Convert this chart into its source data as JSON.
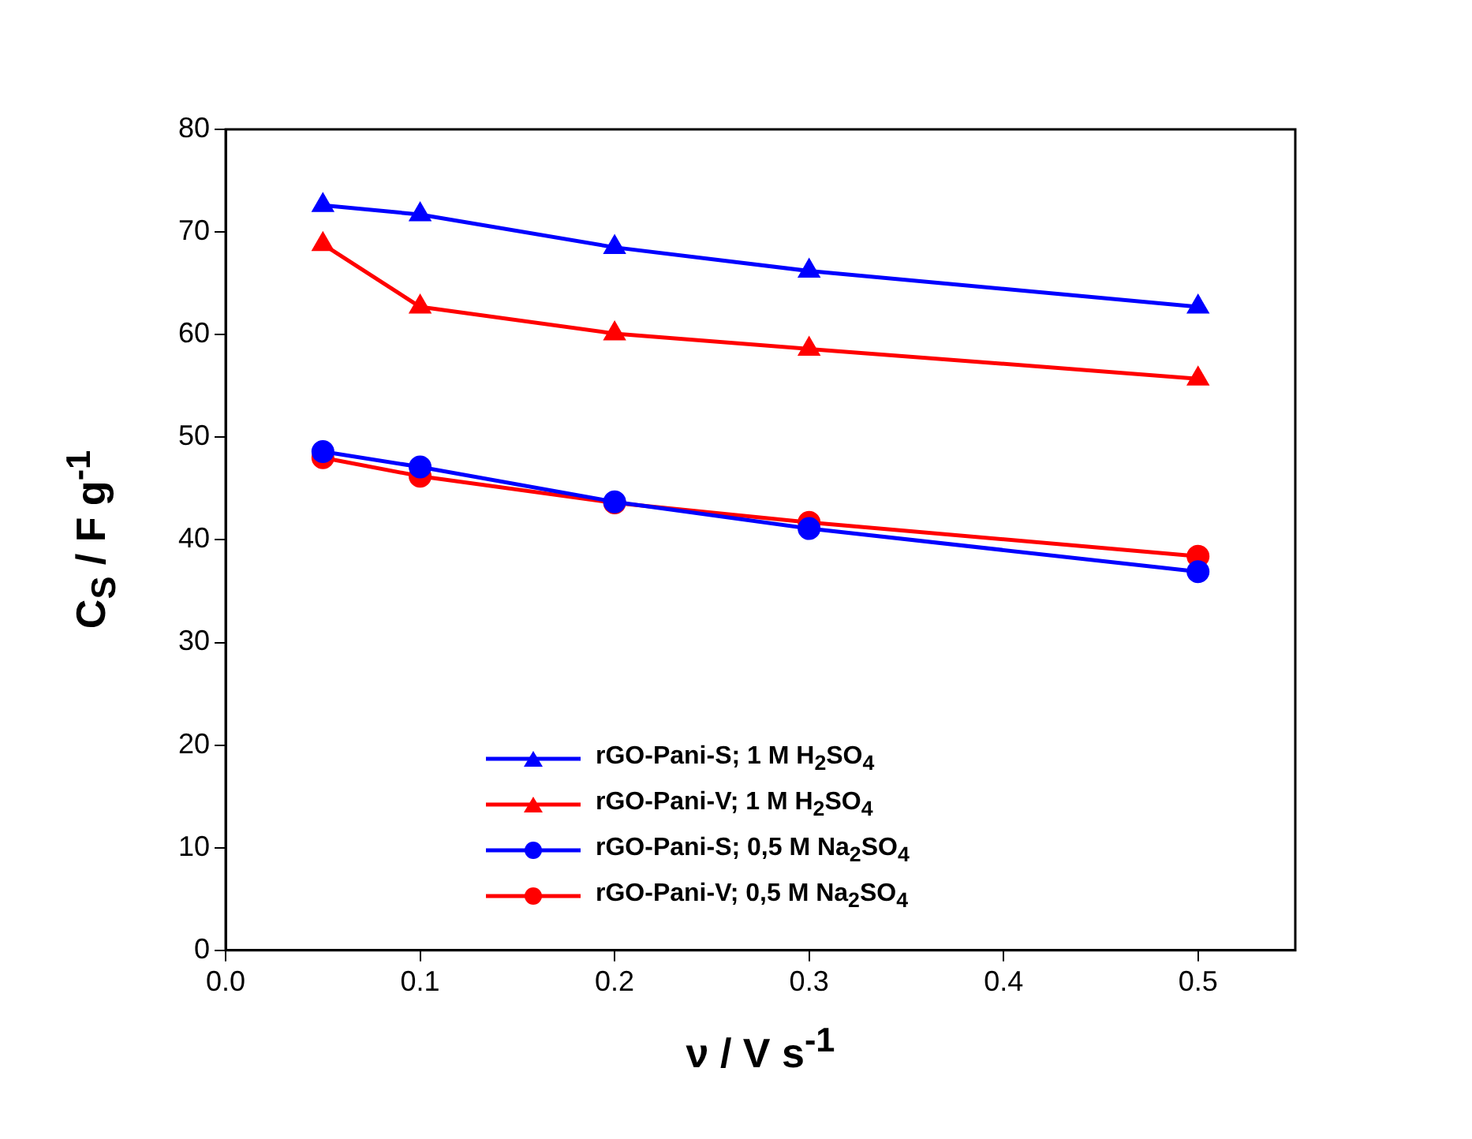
{
  "chart_data": {
    "type": "line",
    "xlabel": "ν / V s$^{-1}$",
    "ylabel": "C$_{S}$ / F g$^{-1}$",
    "x": [
      0.05,
      0.1,
      0.2,
      0.3,
      0.5
    ],
    "xlim": [
      0,
      0.55
    ],
    "xticks": [
      {
        "value": 0,
        "label": "0.0"
      },
      0.1,
      0.2,
      0.3,
      0.4,
      0.5
    ],
    "ylim": [
      0,
      80
    ],
    "yticks": [
      0,
      10,
      20,
      30,
      40,
      50,
      60,
      70,
      80
    ],
    "grid": false,
    "legend": "bottom",
    "line_style": "solid",
    "series": [
      {
        "name": "rGO-Pani-S; 1 M H$_{2}$SO$_{4}$",
        "color": "#0000ff",
        "marker": "triangle",
        "values": [
          72.6,
          71.7,
          68.5,
          66.2,
          62.7
        ]
      },
      {
        "name": "rGO-Pani-V; 1 M H$_{2}$SO$_{4}$",
        "color": "#ff0000",
        "marker": "triangle",
        "values": [
          68.8,
          62.7,
          60.1,
          58.6,
          55.7
        ]
      },
      {
        "name": "rGO-Pani-S; 0,5 M Na$_{2}$SO$_{4}$",
        "color": "#0000ff",
        "marker": "circle",
        "values": [
          48.6,
          47.1,
          43.7,
          41.1,
          36.9
        ]
      },
      {
        "name": "rGO-Pani-V; 0,5 M Na$_{2}$SO$_{4}$",
        "color": "#ff0000",
        "marker": "circle",
        "values": [
          48.0,
          46.2,
          43.6,
          41.7,
          38.4
        ]
      }
    ]
  }
}
